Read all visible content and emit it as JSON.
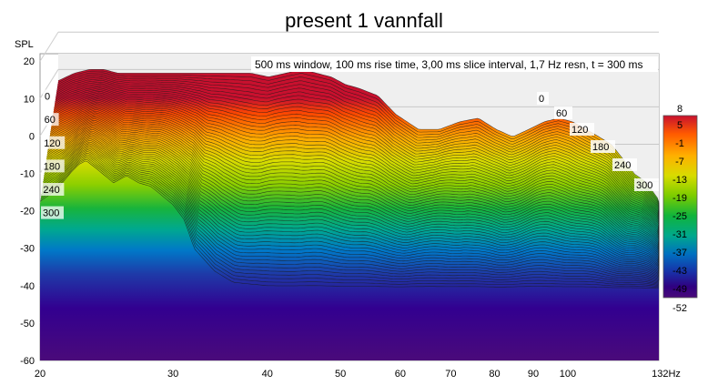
{
  "chart_data": {
    "type": "waterfall",
    "title": "present 1 vannfall",
    "ylabel": "SPL",
    "xunit": "Hz",
    "info": "500 ms window, 100 ms rise time, 3,00 ms slice interval, 1,7 Hz resn, t = 300 ms",
    "xscale": "log",
    "xlim": [
      20,
      132
    ],
    "ylim": [
      -60,
      22
    ],
    "x_ticks": [
      20,
      30,
      40,
      50,
      60,
      70,
      80,
      90,
      100
    ],
    "x_tick_labels": [
      "20",
      "30",
      "40",
      "50",
      "60",
      "70",
      "80",
      "90",
      "100"
    ],
    "x_end_label": "132Hz",
    "y_ticks": [
      20,
      10,
      0,
      -10,
      -20,
      -30,
      -40,
      -50,
      -60
    ],
    "time_axis_ms": [
      0,
      60,
      120,
      180,
      240,
      300
    ],
    "time_axis_labels": [
      "0",
      "60",
      "120",
      "180",
      "240",
      "300"
    ],
    "color_scale": {
      "min": -52,
      "max": 8,
      "ticks": [
        8,
        5,
        -1,
        -7,
        -13,
        -19,
        -25,
        -31,
        -37,
        -43,
        -49,
        -52
      ],
      "colors": [
        "#c8102e",
        "#ff5a00",
        "#ffb000",
        "#d8dc00",
        "#7ccc00",
        "#10b43c",
        "#00a88c",
        "#0070c0",
        "#1830a8",
        "#300080",
        "#4a0a7a"
      ]
    },
    "grid": true,
    "front_slice": {
      "x": [
        20,
        21,
        22,
        22.5,
        23,
        24,
        25,
        26,
        27,
        28,
        30,
        31,
        32,
        34,
        36,
        40,
        45,
        50,
        55,
        60,
        70,
        80,
        90,
        100,
        110,
        120,
        132
      ],
      "y": [
        -18,
        -15,
        -10,
        -8,
        -7,
        -10,
        -13,
        -11,
        -13,
        -14,
        -19,
        -23,
        -31,
        -37,
        -40,
        -41,
        -41,
        -41,
        -41,
        -41,
        -41,
        -41,
        -41,
        -41,
        -41,
        -41,
        -41
      ]
    },
    "back_slice": {
      "x": [
        20,
        21,
        22,
        23,
        24,
        26,
        28,
        30,
        32,
        34,
        36,
        38,
        40,
        42,
        44,
        46,
        48,
        50,
        53,
        56,
        60,
        64,
        68,
        72,
        76,
        80,
        84,
        88,
        92,
        96,
        100,
        104,
        108,
        112,
        116,
        120,
        126,
        132
      ],
      "y": [
        7,
        9,
        10,
        10,
        9,
        9,
        9,
        9,
        9,
        9,
        9,
        8,
        9,
        10,
        9,
        8,
        6,
        5,
        3,
        -2,
        -6,
        -6,
        -4,
        -3,
        -6,
        -8,
        -6,
        -4,
        -3,
        -4,
        -6,
        -8,
        -10,
        -14,
        -18,
        -20,
        -26,
        -34
      ]
    },
    "floor_level": -41
  }
}
